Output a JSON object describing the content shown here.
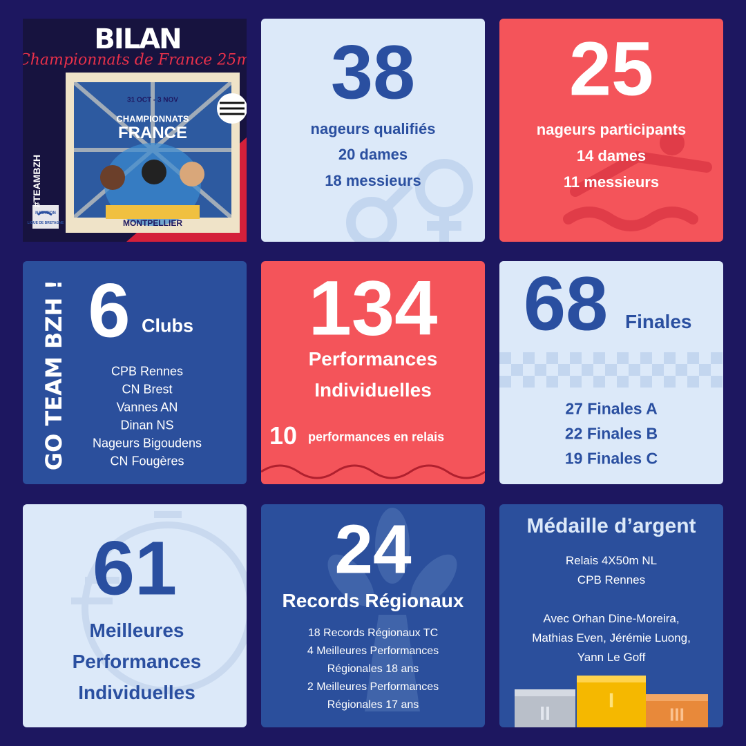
{
  "header": {
    "title": "BILAN",
    "subtitle": "Championnats de France 25m",
    "hashtag": "#TEAMBZH"
  },
  "poster": {
    "dates": "31 OCT - 3 NOV",
    "title": [
      "CHAMPIONNATS",
      "FRANCE"
    ],
    "city": "MONTPELLIER"
  },
  "logo": {
    "name": "NATATION",
    "league": "LIGUE DE BRETAGNE"
  },
  "cards": {
    "qualified": {
      "number": 38,
      "lines": [
        "nageurs qualifiés",
        "20 dames",
        "18 messieurs"
      ]
    },
    "participants": {
      "number": 25,
      "lines": [
        "nageurs participants",
        "14 dames",
        "11 messieurs"
      ]
    },
    "clubs": {
      "slogan": "GO TEAM BZH !",
      "number": 6,
      "label": "Clubs",
      "list": [
        "CPB Rennes",
        "CN Brest",
        "Vannes AN",
        "Dinan NS",
        "Nageurs Bigoudens",
        "CN Fougères"
      ]
    },
    "performances": {
      "number": 134,
      "lines": [
        "Performances",
        "Individuelles"
      ],
      "relay_number": 10,
      "relay_label": "performances en relais"
    },
    "finals": {
      "number": 68,
      "label": "Finales",
      "lines": [
        "27 Finales A",
        "22 Finales B",
        "19 Finales C"
      ]
    },
    "best": {
      "number": 61,
      "lines": [
        "Meilleures",
        "Performances",
        "Individuelles"
      ]
    },
    "records": {
      "number": 24,
      "label": "Records Régionaux",
      "lines": [
        "18 Records Régionaux TC",
        "4 Meilleures Performances",
        "Régionales 18 ans",
        "2 Meilleures Performances",
        "Régionales 17 ans"
      ]
    },
    "medal": {
      "title": "Médaille d’argent",
      "lines": [
        "Relais 4X50m NL",
        "CPB Rennes",
        "",
        "Avec Orhan Dine-Moreira,",
        "Mathias Even, Jérémie Luong,",
        "Yann Le Goff"
      ],
      "podium": [
        "II",
        "I",
        "III"
      ]
    }
  }
}
